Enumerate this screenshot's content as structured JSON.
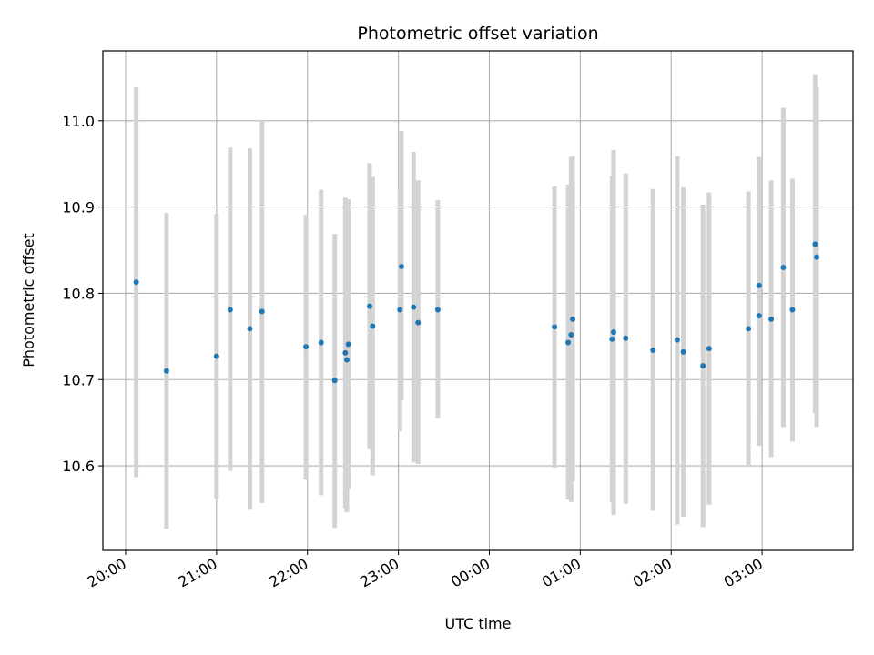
{
  "chart_data": {
    "type": "scatter",
    "title": "Photometric offset variation",
    "xlabel": "UTC time",
    "ylabel": "Photometric offset",
    "xlim": [
      "19:45",
      "04:00"
    ],
    "ylim": [
      10.502,
      11.081
    ],
    "grid": true,
    "x_ticks": [
      "20:00",
      "21:00",
      "22:00",
      "23:00",
      "00:00",
      "01:00",
      "02:00",
      "03:00"
    ],
    "y_ticks": [
      "10.6",
      "10.7",
      "10.8",
      "10.9",
      "11.0"
    ],
    "colors": {
      "marker": "#1f77b4",
      "errorbar": "#d3d3d3",
      "grid": "#b0b0b0"
    },
    "points": [
      {
        "x": "20:07",
        "y": 10.813,
        "low": 10.587,
        "high": 11.039
      },
      {
        "x": "20:27",
        "y": 10.71,
        "low": 10.527,
        "high": 10.893
      },
      {
        "x": "21:00",
        "y": 10.727,
        "low": 10.562,
        "high": 10.892
      },
      {
        "x": "21:09",
        "y": 10.781,
        "low": 10.594,
        "high": 10.969
      },
      {
        "x": "21:22",
        "y": 10.759,
        "low": 10.549,
        "high": 10.968
      },
      {
        "x": "21:30",
        "y": 10.779,
        "low": 10.557,
        "high": 11.001
      },
      {
        "x": "21:59",
        "y": 10.738,
        "low": 10.584,
        "high": 10.891
      },
      {
        "x": "22:09",
        "y": 10.743,
        "low": 10.566,
        "high": 10.92
      },
      {
        "x": "22:18",
        "y": 10.699,
        "low": 10.528,
        "high": 10.869
      },
      {
        "x": "22:25",
        "y": 10.731,
        "low": 10.551,
        "high": 10.911
      },
      {
        "x": "22:26",
        "y": 10.723,
        "low": 10.546,
        "high": 10.909
      },
      {
        "x": "22:27",
        "y": 10.741,
        "low": 10.573,
        "high": 10.909
      },
      {
        "x": "22:41",
        "y": 10.785,
        "low": 10.619,
        "high": 10.951
      },
      {
        "x": "22:43",
        "y": 10.762,
        "low": 10.589,
        "high": 10.935
      },
      {
        "x": "23:01",
        "y": 10.781,
        "low": 10.64,
        "high": 10.922
      },
      {
        "x": "23:02",
        "y": 10.831,
        "low": 10.676,
        "high": 10.988
      },
      {
        "x": "23:10",
        "y": 10.784,
        "low": 10.604,
        "high": 10.964
      },
      {
        "x": "23:13",
        "y": 10.766,
        "low": 10.602,
        "high": 10.931
      },
      {
        "x": "23:26",
        "y": 10.781,
        "low": 10.655,
        "high": 10.908
      },
      {
        "x": "00:43",
        "y": 10.761,
        "low": 10.598,
        "high": 10.924
      },
      {
        "x": "00:52",
        "y": 10.743,
        "low": 10.561,
        "high": 10.926
      },
      {
        "x": "00:54",
        "y": 10.752,
        "low": 10.558,
        "high": 10.958
      },
      {
        "x": "00:55",
        "y": 10.77,
        "low": 10.582,
        "high": 10.959
      },
      {
        "x": "01:21",
        "y": 10.747,
        "low": 10.558,
        "high": 10.936
      },
      {
        "x": "01:22",
        "y": 10.755,
        "low": 10.543,
        "high": 10.966
      },
      {
        "x": "01:30",
        "y": 10.748,
        "low": 10.556,
        "high": 10.939
      },
      {
        "x": "01:48",
        "y": 10.734,
        "low": 10.548,
        "high": 10.921
      },
      {
        "x": "02:04",
        "y": 10.746,
        "low": 10.532,
        "high": 10.959
      },
      {
        "x": "02:08",
        "y": 10.732,
        "low": 10.541,
        "high": 10.923
      },
      {
        "x": "02:21",
        "y": 10.716,
        "low": 10.529,
        "high": 10.903
      },
      {
        "x": "02:25",
        "y": 10.736,
        "low": 10.555,
        "high": 10.917
      },
      {
        "x": "02:51",
        "y": 10.759,
        "low": 10.6,
        "high": 10.918
      },
      {
        "x": "02:58",
        "y": 10.774,
        "low": 10.623,
        "high": 10.924
      },
      {
        "x": "02:58",
        "y": 10.809,
        "low": 10.661,
        "high": 10.958
      },
      {
        "x": "03:06",
        "y": 10.77,
        "low": 10.61,
        "high": 10.931
      },
      {
        "x": "03:14",
        "y": 10.83,
        "low": 10.645,
        "high": 11.015
      },
      {
        "x": "03:20",
        "y": 10.781,
        "low": 10.628,
        "high": 10.933
      },
      {
        "x": "03:35",
        "y": 10.857,
        "low": 10.661,
        "high": 11.054
      },
      {
        "x": "03:36",
        "y": 10.842,
        "low": 10.645,
        "high": 11.039
      }
    ]
  }
}
